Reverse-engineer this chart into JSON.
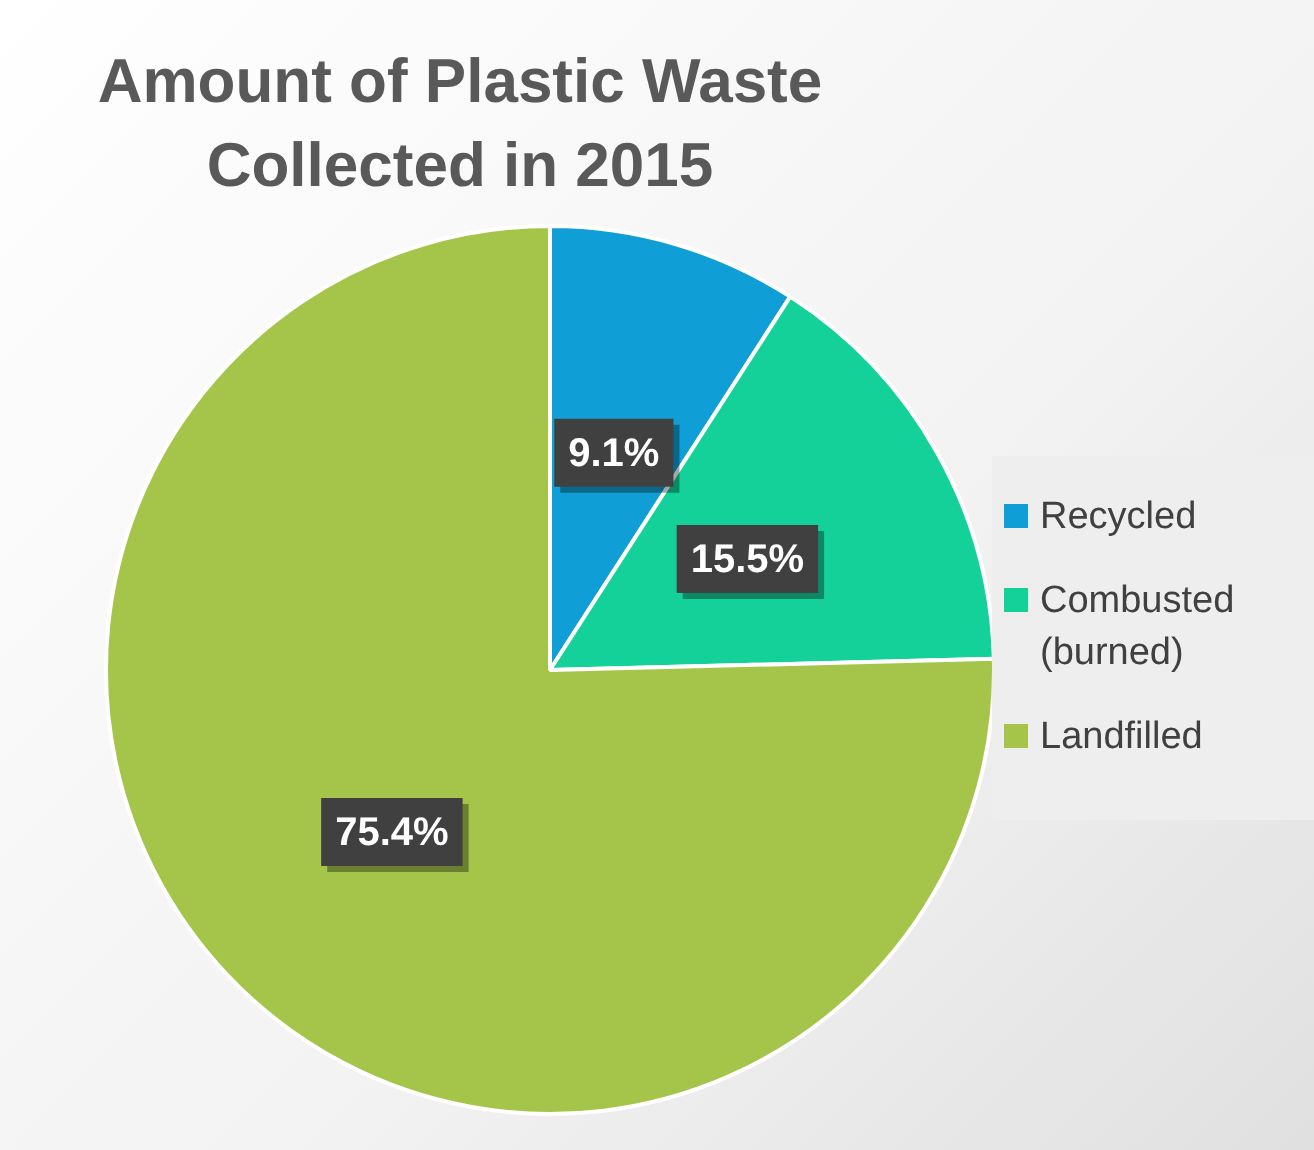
{
  "chart_data": {
    "type": "pie",
    "title": "Amount of Plastic Waste Collected in 2015",
    "categories": [
      "Recycled",
      "Combusted (burned)",
      "Landfilled"
    ],
    "values": [
      9.1,
      15.5,
      75.4
    ],
    "value_labels": [
      "9.1%",
      "15.5%",
      "75.4%"
    ],
    "colors": [
      "#0f9ed5",
      "#14d19a",
      "#a5c44a"
    ],
    "legend": "right"
  }
}
